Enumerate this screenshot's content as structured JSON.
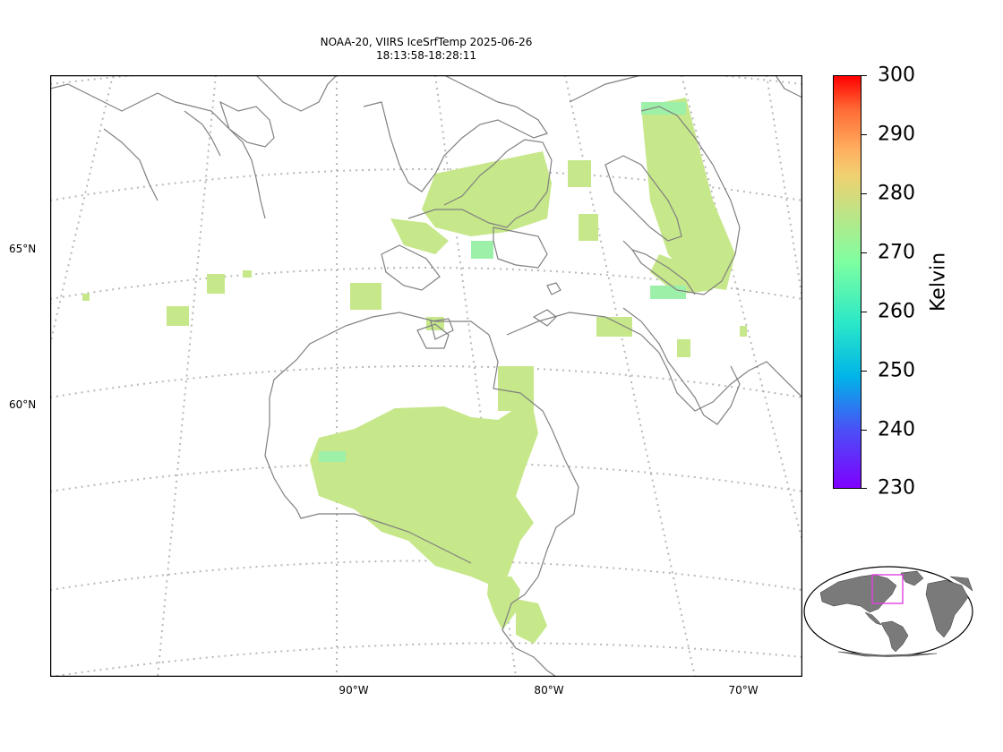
{
  "title": {
    "line1": "NOAA-20, VIIRS IceSrfTemp 2025-06-26",
    "line2": "18:13:58-18:28:11"
  },
  "axes": {
    "longitude_labels": [
      "90°W",
      "80°W",
      "70°W"
    ],
    "latitude_labels": [
      "65°N",
      "60°N"
    ]
  },
  "colorbar": {
    "label": "Kelvin",
    "ticks": [
      "300",
      "290",
      "280",
      "270",
      "260",
      "250",
      "240",
      "230"
    ],
    "min": 230,
    "max": 300,
    "colormap": "rainbow"
  },
  "inset": {
    "description_icon": "globe-locator-icon",
    "highlight_color": "#e040e0"
  },
  "colors": {
    "coastline": "#808080",
    "gridline": "#b0b0b0",
    "ice_primary": "#c6e78a",
    "ice_secondary": "#a8ee98"
  }
}
